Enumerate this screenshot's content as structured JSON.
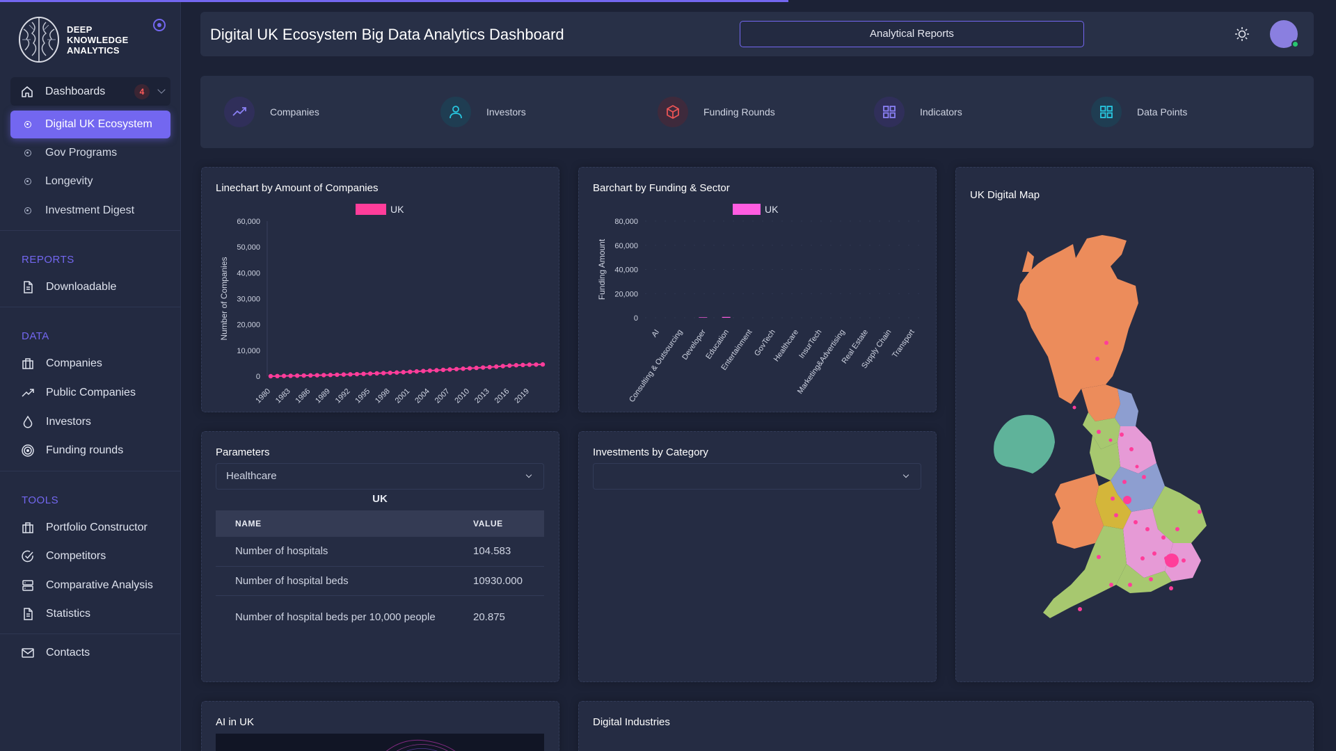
{
  "brand": {
    "line1": "DEEP",
    "line2": "KNOWLEDGE",
    "line3": "ANALYTICS"
  },
  "sidebar": {
    "dashboards": {
      "label": "Dashboards",
      "badge": "4"
    },
    "dash_items": [
      "Digital UK Ecosystem",
      "Gov Programs",
      "Longevity",
      "Investment Digest"
    ],
    "reports_title": "REPORTS",
    "reports": [
      "Downloadable"
    ],
    "data_title": "DATA",
    "data": [
      "Companies",
      "Public Companies",
      "Investors",
      "Funding rounds"
    ],
    "tools_title": "TOOLS",
    "tools": [
      "Portfolio Constructor",
      "Competitors",
      "Comparative Analysis",
      "Statistics"
    ],
    "contacts": "Contacts"
  },
  "header": {
    "title": "Digital UK Ecosystem Big Data Analytics Dashboard",
    "reports_button": "Analytical Reports"
  },
  "stats": [
    "Companies",
    "Investors",
    "Funding Rounds",
    "Indicators",
    "Data Points"
  ],
  "colors": {
    "accent": "#7367f0",
    "line_series": "#ff3d9a",
    "bar_series": "#ff5ce1",
    "card": "#252c43"
  },
  "line_card": {
    "title": "Linechart by Amount of Companies"
  },
  "bar_card": {
    "title": "Barchart by Funding & Sector"
  },
  "map_card": {
    "title": "UK Digital Map"
  },
  "params_card": {
    "title": "Parameters",
    "selected": "Healthcare",
    "table_caption": "UK",
    "col_name": "NAME",
    "col_value": "VALUE",
    "rows": [
      {
        "name": "Number of hospitals",
        "value": "104.583"
      },
      {
        "name": "Number of hospital beds",
        "value": "10930.000"
      },
      {
        "name": "Number of hospital beds per 10,000 people",
        "value": "20.875"
      }
    ]
  },
  "invest_card": {
    "title": "Investments by Category",
    "selected": ""
  },
  "ai_card": {
    "title": "AI in UK"
  },
  "industries_card": {
    "title": "Digital Industries"
  },
  "chart_data": [
    {
      "type": "line",
      "title": "Linechart by Amount of Companies",
      "ylabel": "Number of Companies",
      "xlabel": "",
      "ylim": [
        0,
        60000
      ],
      "yticks": [
        0,
        10000,
        20000,
        30000,
        40000,
        50000,
        60000
      ],
      "ytick_labels": [
        "0",
        "10,000",
        "20,000",
        "30,000",
        "40,000",
        "50,000",
        "60,000"
      ],
      "x_tick_labels": [
        "1980",
        "1983",
        "1986",
        "1989",
        "1992",
        "1995",
        "1998",
        "2001",
        "2004",
        "2007",
        "2010",
        "2013",
        "2016",
        "2019"
      ],
      "x": [
        1980,
        1981,
        1982,
        1983,
        1984,
        1985,
        1986,
        1987,
        1988,
        1989,
        1990,
        1991,
        1992,
        1993,
        1994,
        1995,
        1996,
        1997,
        1998,
        1999,
        2000,
        2001,
        2002,
        2003,
        2004,
        2005,
        2006,
        2007,
        2008,
        2009,
        2010,
        2011,
        2012,
        2013,
        2014,
        2015,
        2016,
        2017,
        2018,
        2019,
        2020,
        2021
      ],
      "legend": "top-center",
      "series": [
        {
          "name": "UK",
          "values": [
            0,
            50,
            100,
            150,
            200,
            250,
            300,
            360,
            420,
            480,
            560,
            640,
            720,
            800,
            900,
            1000,
            1100,
            1200,
            1300,
            1420,
            1550,
            1700,
            1850,
            2000,
            2150,
            2300,
            2450,
            2600,
            2750,
            2900,
            3050,
            3200,
            3350,
            3500,
            3700,
            3900,
            4100,
            4250,
            4350,
            4450,
            4500,
            4550
          ]
        }
      ]
    },
    {
      "type": "bar",
      "title": "Barchart by Funding & Sector",
      "ylabel": "Funding Amount",
      "xlabel": "",
      "ylim": [
        0,
        80000
      ],
      "yticks": [
        0,
        20000,
        40000,
        60000,
        80000
      ],
      "ytick_labels": [
        "0",
        "20,000",
        "40,000",
        "60,000",
        "80,000"
      ],
      "legend": "top-center",
      "categories": [
        "AI",
        "Consulting & Outsourcing",
        "Developer",
        "Education",
        "Entertainment",
        "GovTech",
        "Healthcare",
        "InsurTech",
        "Marketing&Advertising",
        "Real Estate",
        "Supply Chain",
        "Transport"
      ],
      "series": [
        {
          "name": "UK",
          "values": [
            0,
            0,
            400,
            700,
            0,
            0,
            0,
            0,
            0,
            0,
            0,
            0
          ]
        }
      ]
    }
  ]
}
